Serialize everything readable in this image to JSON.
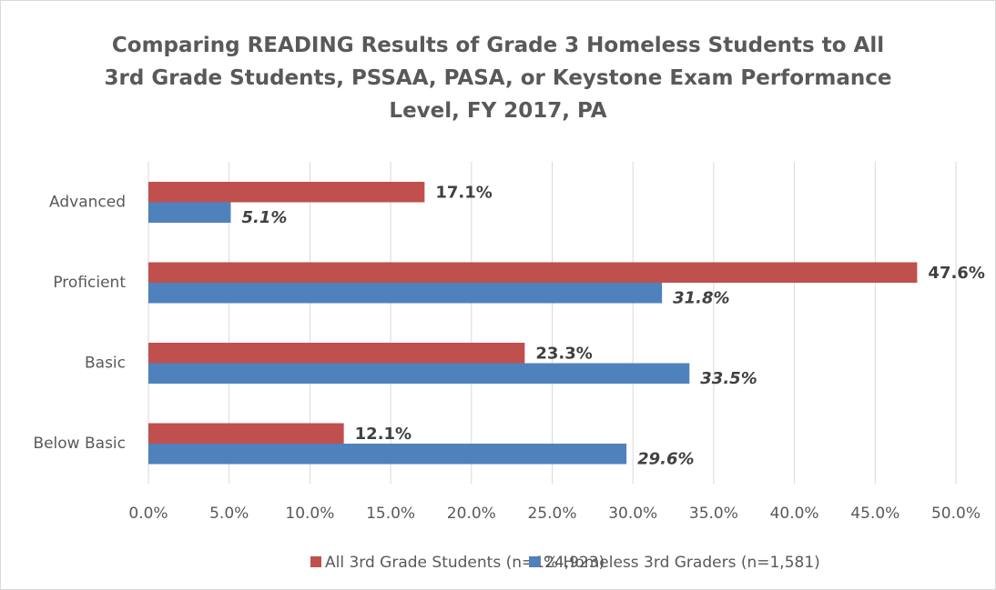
{
  "chart_data": {
    "type": "hbar",
    "title": "Comparing READING Results of Grade 3 Homeless Students to All 3rd Grade Students, PSSAA, PASA, or Keystone Exam Performance Level, FY 2017, PA",
    "categories": [
      "Advanced",
      "Proficient",
      "Basic",
      "Below Basic"
    ],
    "series": [
      {
        "name": "All 3rd Grade Students (n=124,923)",
        "color": "#c0504d",
        "values": [
          17.1,
          47.6,
          23.3,
          12.1
        ],
        "value_labels": [
          "17.1%",
          "47.6%",
          "23.3%",
          "12.1%"
        ]
      },
      {
        "name": "% Homeless 3rd Graders (n=1,581)",
        "color": "#4f81bd",
        "values": [
          5.1,
          31.8,
          33.5,
          29.6
        ],
        "value_labels": [
          "5.1%",
          "31.8%",
          "33.5%",
          "29.6%"
        ]
      }
    ],
    "xlim": [
      0,
      50
    ],
    "xticks": [
      {
        "value": 0,
        "label": "0.0%"
      },
      {
        "value": 5,
        "label": "5.0%"
      },
      {
        "value": 10,
        "label": "10.0%"
      },
      {
        "value": 15,
        "label": "15.0%"
      },
      {
        "value": 20,
        "label": "20.0%"
      },
      {
        "value": 25,
        "label": "25.0%"
      },
      {
        "value": 30,
        "label": "30.0%"
      },
      {
        "value": 35,
        "label": "35.0%"
      },
      {
        "value": 40,
        "label": "40.0%"
      },
      {
        "value": 45,
        "label": "45.0%"
      },
      {
        "value": 50,
        "label": "50.0%"
      }
    ],
    "grid": true,
    "legend": "bottom"
  }
}
